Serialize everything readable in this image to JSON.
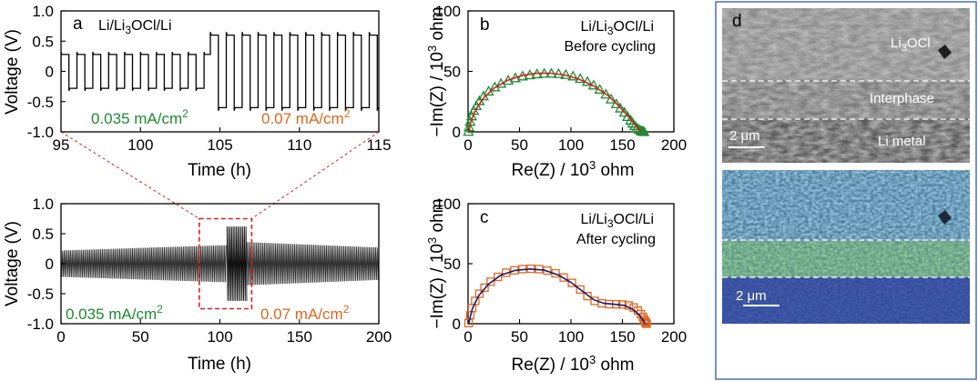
{
  "colors": {
    "green": "#1e8a32",
    "orange": "#e0661e",
    "red_fit": "#d42020",
    "navy_fit": "#1a1a6e",
    "zoom_box": "#e02020",
    "frame": "#5a78b0"
  },
  "chart_data": [
    {
      "id": "a",
      "type": "line",
      "panel_label": "a",
      "cell_label": "Li/Li3OCl/Li",
      "xlabel": "Time (h)",
      "ylabel": "Voltage (V)",
      "xlim": [
        95,
        115
      ],
      "ylim": [
        -1.0,
        1.0
      ],
      "xticks": [
        95,
        100,
        105,
        110,
        115
      ],
      "yticks": [
        -1.0,
        -0.5,
        0,
        0.5,
        1.0
      ],
      "ytick_labels": [
        "-1.0",
        "-0.5",
        "0",
        "0.5",
        "1.0"
      ],
      "series": [
        {
          "name": "0.035 mA/cm2",
          "t_start": 95,
          "t_end": 104.4,
          "period": 1.0,
          "amplitude": 0.28,
          "rise": 0.32
        },
        {
          "name": "0.07 mA/cm2",
          "t_start": 104.4,
          "t_end": 115,
          "period": 1.0,
          "amplitude": 0.6,
          "rise": 0.65
        }
      ],
      "annotations": [
        {
          "text": "0.035 mA/cm2",
          "color": "green"
        },
        {
          "text": "0.07 mA/cm2",
          "color": "orange"
        }
      ]
    },
    {
      "id": "a_full",
      "type": "line",
      "xlabel": "Time (h)",
      "ylabel": "Voltage (V)",
      "xlim": [
        0,
        200
      ],
      "ylim": [
        -1.0,
        1.0
      ],
      "xticks": [
        0,
        50,
        100,
        150,
        200
      ],
      "yticks": [
        -1.0,
        -0.5,
        0,
        0.5,
        1.0
      ],
      "ytick_labels": [
        "-1.0",
        "-0.5",
        "0",
        "0.5",
        "1.0"
      ],
      "series": [
        {
          "name": "0.035 mA/cm2 (0-104 h)",
          "t_start": 0,
          "t_end": 104.4,
          "amp_start": 0.22,
          "amp_end": 0.31
        },
        {
          "name": "0.07 mA/cm2 (104-117 h)",
          "t_start": 104.4,
          "t_end": 117,
          "amplitude": 0.62
        },
        {
          "name": "0.035 mA/cm2 (117-200 h)",
          "t_start": 117,
          "t_end": 200,
          "amp_start": 0.36,
          "amp_end": 0.27
        }
      ],
      "zoom_window": {
        "x": [
          87,
          120
        ],
        "y": [
          -0.75,
          0.75
        ]
      },
      "annotations": [
        {
          "text": "0.035 mA/cm2",
          "color": "green"
        },
        {
          "text": "0.07 mA/cm2",
          "color": "orange"
        }
      ]
    },
    {
      "id": "b",
      "type": "scatter",
      "panel_label": "b",
      "title_lines": [
        "Li/Li3OCl/Li",
        "Before cycling"
      ],
      "xlabel": "Re(Z) / 10^3 ohm",
      "ylabel": "-Im(Z) / 10^3 ohm",
      "xlim": [
        0,
        200
      ],
      "ylim": [
        0,
        100
      ],
      "xticks": [
        0,
        50,
        100,
        150,
        200
      ],
      "yticks": [
        0,
        50,
        100
      ],
      "series": [
        {
          "name": "data",
          "marker": "triangle",
          "color": "green",
          "x": [
            0.3,
            0.9,
            2.0,
            3.5,
            5.5,
            8.0,
            11,
            15,
            20,
            26,
            32,
            39,
            46,
            53,
            60,
            67,
            74,
            81,
            88,
            95,
            102,
            109,
            116,
            122,
            128,
            134,
            139,
            144,
            148,
            152,
            155,
            158,
            160,
            162,
            164,
            166,
            168,
            169,
            170,
            171
          ],
          "y": [
            0.2,
            4.0,
            8.5,
            13.0,
            17.5,
            21.5,
            25.5,
            29.5,
            33.5,
            37.0,
            40.0,
            42.5,
            44.5,
            46.0,
            47.0,
            47.8,
            48.2,
            48.3,
            48.0,
            47.2,
            46.0,
            44.0,
            41.5,
            38.5,
            35.0,
            31.0,
            27.0,
            23.0,
            19.5,
            16.0,
            12.5,
            9.5,
            7.0,
            5.0,
            3.2,
            2.0,
            1.0,
            0.5,
            0.2,
            0
          ]
        },
        {
          "name": "fit",
          "line": true,
          "color": "red_fit",
          "x": [
            0.5,
            3,
            8,
            15,
            25,
            38,
            52,
            66,
            80,
            94,
            108,
            122,
            136,
            147,
            156,
            162,
            166,
            168
          ],
          "y": [
            0,
            9.5,
            19,
            28,
            36,
            42.5,
            46.5,
            48.4,
            48.5,
            47,
            43.5,
            38,
            30,
            21,
            12.5,
            6,
            2,
            0
          ]
        }
      ]
    },
    {
      "id": "c",
      "type": "scatter",
      "panel_label": "c",
      "title_lines": [
        "Li/Li3OCl/Li",
        "After cycling"
      ],
      "xlabel": "Re(Z) / 10^3 ohm",
      "ylabel": "-Im(Z) / 10^3 ohm",
      "xlim": [
        0,
        200
      ],
      "ylim": [
        0,
        100
      ],
      "xticks": [
        0,
        50,
        100,
        150,
        200
      ],
      "yticks": [
        0,
        50,
        100
      ],
      "series": [
        {
          "name": "data",
          "marker": "square",
          "color": "orange",
          "x": [
            0.5,
            2,
            4,
            7,
            11,
            16,
            22,
            29,
            37,
            45,
            53,
            61,
            69,
            77,
            85,
            93,
            101,
            109,
            116,
            123,
            130,
            137,
            144,
            150,
            156,
            161,
            165,
            168,
            170,
            171,
            172,
            172.5,
            173,
            173.5
          ],
          "y": [
            0.5,
            7,
            13,
            19,
            25,
            30,
            35,
            39,
            42.5,
            44.5,
            45.5,
            45.8,
            45.5,
            44.3,
            42,
            38.5,
            34,
            28.5,
            23,
            19,
            17,
            16.3,
            16.2,
            16,
            15.2,
            13.5,
            11,
            8,
            5.5,
            3.5,
            2,
            1,
            0.3,
            0
          ]
        },
        {
          "name": "fit",
          "line": true,
          "color": "navy_fit",
          "x": [
            0.5,
            4,
            10,
            20,
            32,
            46,
            60,
            74,
            88,
            100,
            112,
            122,
            132,
            142,
            152,
            160,
            166,
            170,
            172.5
          ],
          "y": [
            0,
            12,
            23,
            33,
            40.5,
            44.5,
            45.6,
            44.6,
            40.5,
            34.5,
            26.5,
            20,
            17,
            16.2,
            15.2,
            12,
            7.5,
            3,
            0
          ]
        }
      ]
    }
  ],
  "sem": {
    "panel_label": "d",
    "top": {
      "layer_labels": [
        "Li3OCl",
        "Interphase",
        "Li metal"
      ],
      "scale_bar": "2 μm"
    },
    "bottom": {
      "scale_bar": "2 μm"
    }
  }
}
